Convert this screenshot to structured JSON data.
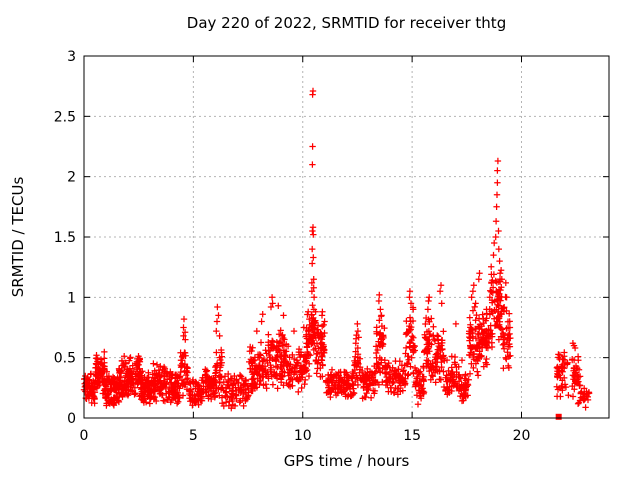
{
  "figure": {
    "title": "Day 220 of 2022, SRMTID for receiver thtg",
    "xlabel": "GPS time / hours",
    "ylabel": "SRMTID / TECUs"
  },
  "colors": {
    "marker": "#ff0000",
    "axis": "#000000",
    "grid": "#b4b4b4",
    "background": "#ffffff",
    "text": "#000000"
  },
  "chart_data": {
    "type": "scatter",
    "title": "Day 220 of 2022, SRMTID for receiver thtg",
    "xlabel": "GPS time / hours",
    "ylabel": "SRMTID / TECUs",
    "xlim": [
      0,
      24
    ],
    "ylim": [
      0,
      3
    ],
    "xticks": {
      "values": [
        0,
        5,
        10,
        15,
        20
      ],
      "labels": [
        "0",
        "5",
        "10",
        "15",
        "20"
      ]
    },
    "yticks": {
      "values": [
        0,
        0.5,
        1,
        1.5,
        2,
        2.5,
        3
      ],
      "labels": [
        "0",
        "0.5",
        "1",
        "1.5",
        "2",
        "2.5",
        "3"
      ]
    },
    "grid": true,
    "legend": null,
    "marker": "plus",
    "series_name": "SRMTID",
    "series_color": "#ff0000",
    "max_point": [
      10.47,
      2.71
    ],
    "secondary_peak": [
      18.92,
      2.13
    ],
    "data_gap_hours": [
      19.5,
      21.6
    ],
    "outlier_square_point": [
      21.7,
      0.01
    ],
    "notable_points": [
      [
        4.55,
        0.68
      ],
      [
        4.55,
        0.75
      ],
      [
        4.57,
        0.82
      ],
      [
        4.62,
        0.71
      ],
      [
        4.63,
        0.65
      ],
      [
        6.05,
        0.72
      ],
      [
        6.08,
        0.8
      ],
      [
        6.1,
        0.92
      ],
      [
        6.15,
        0.85
      ],
      [
        6.2,
        0.68
      ],
      [
        7.9,
        0.72
      ],
      [
        8.12,
        0.8
      ],
      [
        8.17,
        0.86
      ],
      [
        8.55,
        0.92
      ],
      [
        8.6,
        1.0
      ],
      [
        8.62,
        0.95
      ],
      [
        8.88,
        0.93
      ],
      [
        9.12,
        0.85
      ],
      [
        9.6,
        0.72
      ],
      [
        10.05,
        0.75
      ],
      [
        10.25,
        0.88
      ],
      [
        10.3,
        0.82
      ],
      [
        10.42,
        1.05
      ],
      [
        10.42,
        1.12
      ],
      [
        10.43,
        1.28
      ],
      [
        10.43,
        1.4
      ],
      [
        10.44,
        1.55
      ],
      [
        10.44,
        2.1
      ],
      [
        10.45,
        2.25
      ],
      [
        10.45,
        2.68
      ],
      [
        10.47,
        2.71
      ],
      [
        10.47,
        1.58
      ],
      [
        10.48,
        1.52
      ],
      [
        10.48,
        1.33
      ],
      [
        10.5,
        1.15
      ],
      [
        10.5,
        1.08
      ],
      [
        10.52,
        1.0
      ],
      [
        10.88,
        0.85
      ],
      [
        10.9,
        0.88
      ],
      [
        11.0,
        0.8
      ],
      [
        12.5,
        0.78
      ],
      [
        12.52,
        0.72
      ],
      [
        13.48,
        0.97
      ],
      [
        13.5,
        1.02
      ],
      [
        13.55,
        0.9
      ],
      [
        13.6,
        0.85
      ],
      [
        14.88,
        1.0
      ],
      [
        14.9,
        1.05
      ],
      [
        14.95,
        0.95
      ],
      [
        15.05,
        0.9
      ],
      [
        15.72,
        0.9
      ],
      [
        15.75,
        0.97
      ],
      [
        15.78,
        1.0
      ],
      [
        16.28,
        1.05
      ],
      [
        16.32,
        1.1
      ],
      [
        16.35,
        0.95
      ],
      [
        17.0,
        0.78
      ],
      [
        17.72,
        1.0
      ],
      [
        17.78,
        1.05
      ],
      [
        17.82,
        1.1
      ],
      [
        17.9,
        0.95
      ],
      [
        18.05,
        1.15
      ],
      [
        18.08,
        1.2
      ],
      [
        18.4,
        0.9
      ],
      [
        18.55,
        1.0
      ],
      [
        18.72,
        1.35
      ],
      [
        18.75,
        1.45
      ],
      [
        18.82,
        1.5
      ],
      [
        18.84,
        1.63
      ],
      [
        18.86,
        1.75
      ],
      [
        18.88,
        1.85
      ],
      [
        18.9,
        1.95
      ],
      [
        18.9,
        2.05
      ],
      [
        18.92,
        2.13
      ],
      [
        18.95,
        1.55
      ],
      [
        18.96,
        1.4
      ],
      [
        19.0,
        1.3
      ],
      [
        19.02,
        1.2
      ],
      [
        19.1,
        1.15
      ],
      [
        19.28,
        1.12
      ],
      [
        19.32,
        1.0
      ],
      [
        22.35,
        0.62
      ],
      [
        22.4,
        0.6
      ],
      [
        22.45,
        0.58
      ]
    ],
    "dense_bands": [
      [
        0.0,
        0.5,
        0.1,
        0.38,
        60
      ],
      [
        0.5,
        0.95,
        0.18,
        0.58,
        70
      ],
      [
        0.95,
        1.6,
        0.08,
        0.4,
        80
      ],
      [
        1.6,
        2.1,
        0.15,
        0.52,
        70
      ],
      [
        2.1,
        2.6,
        0.15,
        0.55,
        70
      ],
      [
        2.6,
        3.1,
        0.08,
        0.4,
        60
      ],
      [
        3.1,
        3.7,
        0.12,
        0.47,
        70
      ],
      [
        3.7,
        4.4,
        0.1,
        0.42,
        70
      ],
      [
        4.4,
        4.75,
        0.15,
        0.6,
        40
      ],
      [
        4.75,
        5.4,
        0.08,
        0.35,
        60
      ],
      [
        5.4,
        6.0,
        0.12,
        0.42,
        60
      ],
      [
        6.0,
        6.3,
        0.15,
        0.6,
        35
      ],
      [
        6.3,
        7.55,
        0.06,
        0.38,
        90
      ],
      [
        7.55,
        8.35,
        0.15,
        0.68,
        85
      ],
      [
        8.35,
        9.35,
        0.2,
        0.75,
        100
      ],
      [
        9.35,
        10.15,
        0.2,
        0.6,
        70
      ],
      [
        10.15,
        10.35,
        0.3,
        0.9,
        30
      ],
      [
        10.35,
        10.6,
        0.5,
        1.0,
        40
      ],
      [
        10.6,
        11.05,
        0.3,
        0.85,
        50
      ],
      [
        11.05,
        12.35,
        0.15,
        0.42,
        110
      ],
      [
        12.35,
        12.65,
        0.2,
        0.7,
        30
      ],
      [
        12.65,
        13.35,
        0.15,
        0.45,
        60
      ],
      [
        13.35,
        13.75,
        0.25,
        0.9,
        45
      ],
      [
        13.75,
        14.7,
        0.15,
        0.5,
        80
      ],
      [
        14.7,
        15.15,
        0.25,
        0.95,
        45
      ],
      [
        15.15,
        15.55,
        0.08,
        0.45,
        40
      ],
      [
        15.55,
        15.9,
        0.25,
        0.95,
        40
      ],
      [
        15.9,
        16.45,
        0.2,
        0.8,
        55
      ],
      [
        16.45,
        17.3,
        0.1,
        0.55,
        65
      ],
      [
        17.3,
        17.6,
        0.1,
        0.4,
        25
      ],
      [
        17.6,
        18.1,
        0.3,
        0.95,
        70
      ],
      [
        18.1,
        18.55,
        0.35,
        0.95,
        50
      ],
      [
        18.55,
        19.1,
        0.45,
        1.3,
        75
      ],
      [
        19.1,
        19.5,
        0.25,
        1.05,
        40
      ],
      [
        21.6,
        22.15,
        0.15,
        0.62,
        45
      ],
      [
        22.3,
        22.7,
        0.1,
        0.58,
        40
      ],
      [
        22.7,
        23.1,
        0.08,
        0.3,
        20
      ]
    ]
  }
}
